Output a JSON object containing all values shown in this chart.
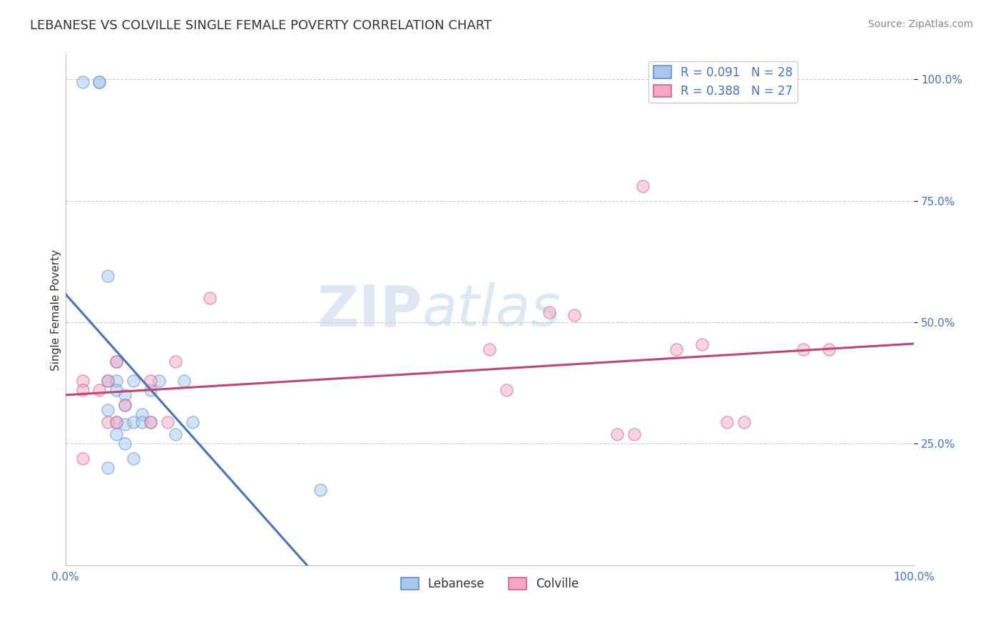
{
  "title": "LEBANESE VS COLVILLE SINGLE FEMALE POVERTY CORRELATION CHART",
  "source": "Source: ZipAtlas.com",
  "ylabel": "Single Female Poverty",
  "ytick_values": [
    0.25,
    0.5,
    0.75,
    1.0
  ],
  "xlim": [
    0.0,
    1.0
  ],
  "ylim": [
    0.0,
    1.05
  ],
  "legend_r1": "R = 0.091   N = 28",
  "legend_r2": "R = 0.388   N = 27",
  "legend_color1": "#A8C8F0",
  "legend_color2": "#F5A8C0",
  "watermark_zip": "ZIP",
  "watermark_atlas": "atlas",
  "lebanese_x": [
    0.02,
    0.04,
    0.04,
    0.05,
    0.05,
    0.05,
    0.05,
    0.06,
    0.06,
    0.06,
    0.06,
    0.06,
    0.07,
    0.07,
    0.07,
    0.07,
    0.08,
    0.08,
    0.08,
    0.09,
    0.09,
    0.1,
    0.1,
    0.11,
    0.13,
    0.14,
    0.15,
    0.3
  ],
  "lebanese_y": [
    0.995,
    0.995,
    0.995,
    0.595,
    0.38,
    0.32,
    0.2,
    0.42,
    0.38,
    0.36,
    0.295,
    0.27,
    0.35,
    0.33,
    0.29,
    0.25,
    0.38,
    0.295,
    0.22,
    0.31,
    0.295,
    0.36,
    0.295,
    0.38,
    0.27,
    0.38,
    0.295,
    0.155
  ],
  "colville_x": [
    0.02,
    0.02,
    0.02,
    0.04,
    0.05,
    0.05,
    0.06,
    0.06,
    0.07,
    0.1,
    0.1,
    0.12,
    0.13,
    0.17,
    0.5,
    0.52,
    0.57,
    0.6,
    0.65,
    0.67,
    0.68,
    0.72,
    0.75,
    0.78,
    0.8,
    0.87,
    0.9
  ],
  "colville_y": [
    0.38,
    0.36,
    0.22,
    0.36,
    0.38,
    0.295,
    0.42,
    0.295,
    0.33,
    0.38,
    0.295,
    0.295,
    0.42,
    0.55,
    0.445,
    0.36,
    0.52,
    0.515,
    0.27,
    0.27,
    0.78,
    0.445,
    0.455,
    0.295,
    0.295,
    0.445,
    0.445
  ],
  "dot_size": 150,
  "dot_alpha": 0.5,
  "dot_edgewidth": 1.2,
  "lebanese_color": "#A8C8F0",
  "colville_color": "#F5A8C0",
  "lebanese_edge": "#6090D0",
  "colville_edge": "#D06090",
  "trend_leb_color": "#4472C4",
  "trend_col_color": "#C4456A",
  "background_color": "#FFFFFF",
  "grid_color": "#CCCCCC",
  "title_fontsize": 13,
  "axis_label_fontsize": 11,
  "tick_fontsize": 11,
  "source_fontsize": 10
}
